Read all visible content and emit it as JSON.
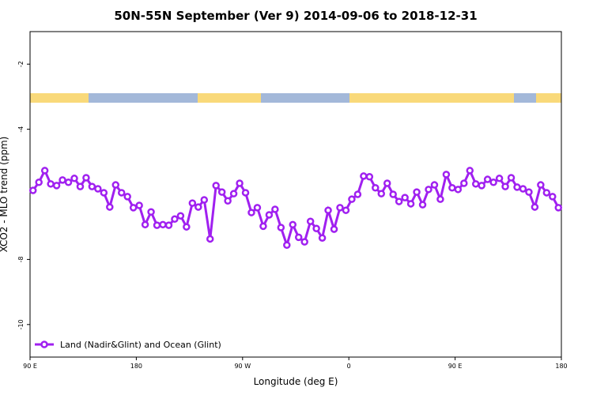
{
  "chart_data": {
    "type": "line",
    "title": "50N-55N September (Ver 9)   2014-09-06 to 2018-12-31",
    "x_label": "Longitude (deg E)",
    "y_label": "XCO2 - MLO trend (ppm)",
    "xlim": [
      90,
      540
    ],
    "xticks": [
      {
        "value": 90,
        "label": "90 E"
      },
      {
        "value": 180,
        "label": "180"
      },
      {
        "value": 270,
        "label": "90 W"
      },
      {
        "value": 360,
        "label": "0"
      },
      {
        "value": 450,
        "label": "90 E"
      },
      {
        "value": 540,
        "label": "180"
      }
    ],
    "ylim": [
      -11,
      -1
    ],
    "yticks": [
      -2,
      -4,
      -8,
      -10
    ],
    "legend": "bottom-left",
    "x": [
      92.5,
      97.5,
      102.5,
      107.5,
      112.5,
      117.5,
      122.5,
      127.5,
      132.5,
      137.5,
      142.5,
      147.5,
      152.5,
      157.5,
      162.5,
      167.5,
      172.5,
      177.5,
      182.5,
      187.5,
      192.5,
      197.5,
      202.5,
      207.5,
      212.5,
      217.5,
      222.5,
      227.5,
      232.5,
      237.5,
      242.5,
      247.5,
      252.5,
      257.5,
      262.5,
      267.5,
      272.5,
      277.5,
      282.5,
      287.5,
      292.5,
      297.5,
      302.5,
      307.5,
      312.5,
      317.5,
      322.5,
      327.5,
      332.5,
      337.5,
      342.5,
      347.5,
      352.5,
      357.5,
      362.5,
      367.5,
      372.5,
      377.5,
      382.5,
      387.5,
      392.5,
      397.5,
      402.5,
      407.5,
      412.5,
      417.5,
      422.5,
      427.5,
      432.5,
      437.5,
      442.5,
      447.5,
      452.5,
      457.5,
      462.5,
      467.5,
      472.5,
      477.5,
      482.5,
      487.5,
      492.5,
      497.5,
      502.5,
      507.5,
      512.5,
      517.5,
      522.5,
      527.5,
      532.5,
      537.5
    ],
    "series": [
      {
        "name": "Land (Nadir&Glint) and Ocean (Glint)",
        "color": "#a020f0",
        "values": [
          -5.88,
          -5.63,
          -5.27,
          -5.68,
          -5.73,
          -5.56,
          -5.63,
          -5.51,
          -5.76,
          -5.49,
          -5.76,
          -5.83,
          -5.95,
          -6.39,
          -5.71,
          -5.95,
          -6.07,
          -6.41,
          -6.34,
          -6.93,
          -6.54,
          -6.95,
          -6.93,
          -6.95,
          -6.76,
          -6.66,
          -7.0,
          -6.27,
          -6.39,
          -6.17,
          -7.37,
          -5.73,
          -5.93,
          -6.2,
          -5.98,
          -5.66,
          -5.95,
          -6.56,
          -6.41,
          -6.98,
          -6.63,
          -6.46,
          -7.02,
          -7.56,
          -6.93,
          -7.32,
          -7.46,
          -6.83,
          -7.05,
          -7.34,
          -6.49,
          -7.07,
          -6.41,
          -6.49,
          -6.15,
          -6.0,
          -5.44,
          -5.46,
          -5.8,
          -5.98,
          -5.66,
          -6.0,
          -6.22,
          -6.1,
          -6.29,
          -5.93,
          -6.32,
          -5.85,
          -5.71,
          -6.15,
          -5.39,
          -5.8,
          -5.85,
          -5.66,
          -5.27,
          -5.68,
          -5.73,
          -5.54,
          -5.63,
          -5.51,
          -5.76,
          -5.49,
          -5.78,
          -5.83,
          -5.93,
          -6.39,
          -5.71,
          -5.95,
          -6.07,
          -6.41
        ]
      }
    ]
  }
}
